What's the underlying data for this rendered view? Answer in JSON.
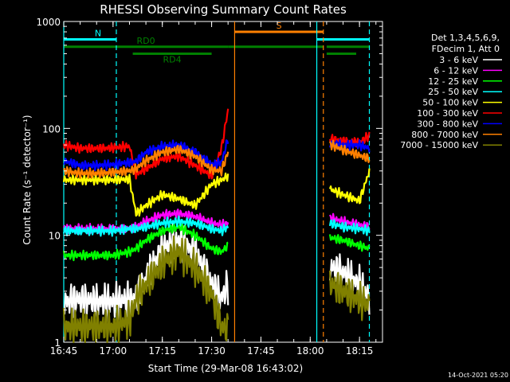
{
  "chart_data": {
    "type": "line",
    "title": "RHESSI Observing Summary Count Rates",
    "xlabel": "Start Time (29-Mar-08 16:43:02)",
    "ylabel": "Count Rate (s⁻¹ detector⁻¹)",
    "y_scale": "log",
    "ylim": [
      1,
      1000
    ],
    "xlim": [
      "16:45",
      "18:22"
    ],
    "x_ticks": [
      "16:45",
      "17:00",
      "17:15",
      "17:30",
      "17:45",
      "18:00",
      "18:15"
    ],
    "y_ticks": [
      "1",
      "10",
      "100",
      "1000"
    ],
    "grid": false,
    "background": "#000000",
    "legend": {
      "placement": "right",
      "header": [
        "Det 1,3,4,5,6,9,",
        "FDecim 1, Att 0"
      ]
    },
    "series": [
      {
        "name": "3 - 6 keV",
        "color": "#ffffff",
        "x": [
          "16:45",
          "16:50",
          "16:55",
          "17:00",
          "17:05",
          "17:07",
          "17:10",
          "17:15",
          "17:20",
          "17:25",
          "17:30",
          "17:33",
          "17:35",
          "18:06",
          "18:10",
          "18:15",
          "18:18"
        ],
        "y": [
          2.4,
          2.5,
          2.4,
          2.4,
          2.5,
          2.6,
          4.0,
          7.5,
          9.0,
          7.0,
          3.5,
          2.6,
          3.4,
          5.0,
          4.5,
          3.5,
          2.6
        ]
      },
      {
        "name": "6 - 12 keV",
        "color": "#ff00ff",
        "x": [
          "16:45",
          "16:50",
          "16:55",
          "17:00",
          "17:05",
          "17:07",
          "17:10",
          "17:15",
          "17:20",
          "17:25",
          "17:30",
          "17:33",
          "17:35",
          "18:06",
          "18:10",
          "18:15",
          "18:18"
        ],
        "y": [
          11.5,
          11.5,
          11.5,
          11.5,
          11.5,
          12,
          13.5,
          15.5,
          16,
          15,
          13,
          12.5,
          13,
          14.5,
          13.5,
          12.5,
          12
        ]
      },
      {
        "name": "12 - 25 keV",
        "color": "#00ff00",
        "x": [
          "16:45",
          "16:50",
          "16:55",
          "17:00",
          "17:05",
          "17:07",
          "17:10",
          "17:15",
          "17:20",
          "17:25",
          "17:30",
          "17:33",
          "17:35",
          "18:06",
          "18:10",
          "18:15",
          "18:18"
        ],
        "y": [
          6.5,
          6.5,
          6.5,
          6.5,
          7.0,
          7.5,
          9,
          11,
          12,
          10,
          7.5,
          7,
          8,
          9.5,
          9,
          8,
          7.5
        ]
      },
      {
        "name": "25 - 50 keV",
        "color": "#00ffff",
        "x": [
          "16:45",
          "16:50",
          "16:55",
          "17:00",
          "17:05",
          "17:07",
          "17:10",
          "17:15",
          "17:20",
          "17:25",
          "17:30",
          "17:33",
          "17:35",
          "18:06",
          "18:10",
          "18:15",
          "18:18"
        ],
        "y": [
          11,
          11,
          11,
          11,
          11.5,
          11.5,
          12,
          13,
          13.5,
          13,
          11.5,
          11,
          12,
          13,
          12,
          11.5,
          11
        ]
      },
      {
        "name": "50 - 100 keV",
        "color": "#ffff00",
        "x": [
          "16:45",
          "16:50",
          "16:55",
          "17:00",
          "17:05",
          "17:07",
          "17:10",
          "17:15",
          "17:20",
          "17:25",
          "17:30",
          "17:33",
          "17:35",
          "18:06",
          "18:10",
          "18:15",
          "18:18"
        ],
        "y": [
          33,
          33,
          33,
          33,
          33.5,
          16,
          19,
          24,
          22,
          19,
          30,
          33,
          36,
          27,
          24,
          21,
          40
        ]
      },
      {
        "name": "100 - 300 keV",
        "color": "#ff0000",
        "x": [
          "16:45",
          "16:50",
          "16:55",
          "17:00",
          "17:05",
          "17:07",
          "17:10",
          "17:15",
          "17:20",
          "17:25",
          "17:30",
          "17:33",
          "17:35",
          "18:06",
          "18:10",
          "18:15",
          "18:18"
        ],
        "y": [
          70,
          65,
          65,
          66,
          68,
          37,
          42,
          52,
          55,
          45,
          36,
          65,
          150,
          80,
          76,
          74,
          86
        ]
      },
      {
        "name": "300 - 800 keV",
        "color": "#0000ff",
        "x": [
          "16:45",
          "16:50",
          "16:55",
          "17:00",
          "17:05",
          "17:07",
          "17:10",
          "17:15",
          "17:20",
          "17:25",
          "17:30",
          "17:33",
          "17:35",
          "18:06",
          "18:10",
          "18:15",
          "18:18"
        ],
        "y": [
          50,
          45,
          45,
          46,
          48,
          49,
          60,
          68,
          70,
          60,
          46,
          48,
          80,
          72,
          70,
          70,
          65
        ]
      },
      {
        "name": "800 - 7000 keV",
        "color": "#ff8000",
        "x": [
          "16:45",
          "16:50",
          "16:55",
          "17:00",
          "17:05",
          "17:07",
          "17:10",
          "17:15",
          "17:20",
          "17:25",
          "17:30",
          "17:33",
          "17:35",
          "18:06",
          "18:10",
          "18:15",
          "18:18"
        ],
        "y": [
          40,
          38,
          38,
          39,
          40,
          42,
          50,
          60,
          64,
          55,
          41,
          40,
          60,
          71,
          63,
          56,
          52
        ]
      },
      {
        "name": "7000 - 15000 keV",
        "color": "#808000",
        "x": [
          "16:45",
          "16:50",
          "16:55",
          "17:00",
          "17:05",
          "17:07",
          "17:10",
          "17:15",
          "17:20",
          "17:25",
          "17:30",
          "17:33",
          "17:35",
          "18:06",
          "18:10",
          "18:15",
          "18:18"
        ],
        "y": [
          1.4,
          1.4,
          1.4,
          1.4,
          1.6,
          2.5,
          3.5,
          5.5,
          7,
          5,
          2.8,
          1.4,
          1.3,
          3.5,
          3,
          2.5,
          2.2
        ]
      }
    ],
    "vertical_markers": [
      {
        "x": "16:45",
        "color": "#00ffff",
        "style": "solid"
      },
      {
        "x": "17:01",
        "color": "#00ffff",
        "style": "dashed"
      },
      {
        "x": "17:37",
        "color": "#ff8000",
        "style": "solid"
      },
      {
        "x": "18:02",
        "color": "#00ffff",
        "style": "solid"
      },
      {
        "x": "18:04",
        "color": "#ff8000",
        "style": "dashed"
      },
      {
        "x": "18:18",
        "color": "#00ffff",
        "style": "dashed"
      }
    ],
    "flag_bars": [
      {
        "label": "N",
        "color": "#00ffff",
        "level": 680,
        "segments": [
          [
            "16:45",
            "17:01"
          ],
          [
            "18:02",
            "18:18"
          ]
        ]
      },
      {
        "label": "S",
        "color": "#ff8000",
        "level": 800,
        "segments": [
          [
            "17:37",
            "18:04"
          ]
        ]
      },
      {
        "label": "RD0",
        "color": "#008000",
        "level": 580,
        "segments": [
          [
            "16:45",
            "17:35"
          ],
          [
            "17:35",
            "18:04"
          ],
          [
            "18:05",
            "18:18"
          ]
        ]
      },
      {
        "label": "RD4",
        "color": "#008000",
        "level": 500,
        "segments": [
          [
            "17:06",
            "17:30"
          ],
          [
            "18:05",
            "18:14"
          ]
        ]
      }
    ]
  },
  "footer": {
    "timestamp": "14-Oct-2021 05:20"
  }
}
